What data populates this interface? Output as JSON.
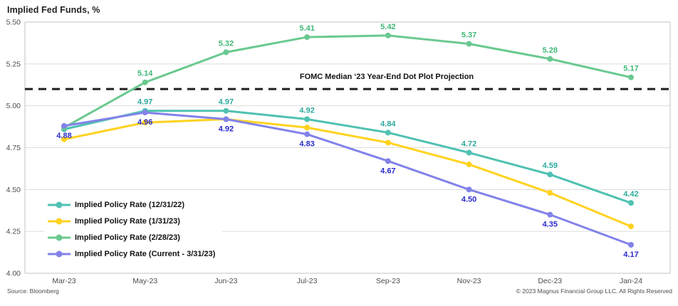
{
  "title": "Implied Fed Funds, %",
  "footer": {
    "source": "Source: Bloomberg",
    "copyright": "© 2023 Magnus Financial Group LLC. All Rights Reserved"
  },
  "chart_data": {
    "type": "line",
    "title": "Implied Fed Funds, %",
    "categories": [
      "Mar-23",
      "May-23",
      "Jun-23",
      "Jul-23",
      "Sep-23",
      "Nov-23",
      "Dec-23",
      "Jan-24"
    ],
    "series": [
      {
        "name": "Implied Policy Rate (12/31/22)",
        "color": "#4FC1B2",
        "label_color": "#2CA99B",
        "label_position": "above",
        "values": [
          4.86,
          4.97,
          4.97,
          4.92,
          4.84,
          4.72,
          4.59,
          4.42
        ],
        "labels": [
          null,
          "4.97",
          "4.97",
          "4.92",
          "4.84",
          "4.72",
          "4.59",
          "4.42"
        ]
      },
      {
        "name": "Implied Policy Rate (1/31/23)",
        "color": "#FFD21F",
        "label_color": "#E0B400",
        "label_position": "above",
        "values": [
          4.8,
          4.9,
          4.92,
          4.87,
          4.78,
          4.65,
          4.48,
          4.28
        ],
        "labels": [
          null,
          null,
          null,
          null,
          null,
          null,
          null,
          null
        ]
      },
      {
        "name": "Implied Policy Rate (2/28/23)",
        "color": "#69C98F",
        "label_color": "#3FB878",
        "label_position": "above",
        "values": [
          4.87,
          5.14,
          5.32,
          5.41,
          5.42,
          5.37,
          5.28,
          5.17
        ],
        "labels": [
          null,
          "5.14",
          "5.32",
          "5.41",
          "5.42",
          "5.37",
          "5.28",
          "5.17"
        ]
      },
      {
        "name": "Implied Policy Rate (Current - 3/31/23)",
        "color": "#8282E9",
        "label_color": "#2A2BCD",
        "label_position": "below",
        "values": [
          4.88,
          4.96,
          4.92,
          4.83,
          4.67,
          4.5,
          4.35,
          4.17
        ],
        "labels": [
          "4.88",
          "4.96",
          "4.92",
          "4.83",
          "4.67",
          "4.50",
          "4.35",
          "4.17"
        ]
      }
    ],
    "reference_line": {
      "value": 5.1,
      "label": "FOMC Median ‘23 Year-End Dot Plot Projection",
      "style": "dashed",
      "color": "#1f1f1f"
    },
    "ylabel": "Implied Fed Funds, %",
    "xlabel": "",
    "ylim": [
      4.0,
      5.5
    ],
    "y_ticks": [
      "5.50",
      "5.25",
      "5.00",
      "4.75",
      "4.50",
      "4.25",
      "4.00"
    ],
    "grid": true,
    "legend_position": "inside-bottom-left"
  }
}
